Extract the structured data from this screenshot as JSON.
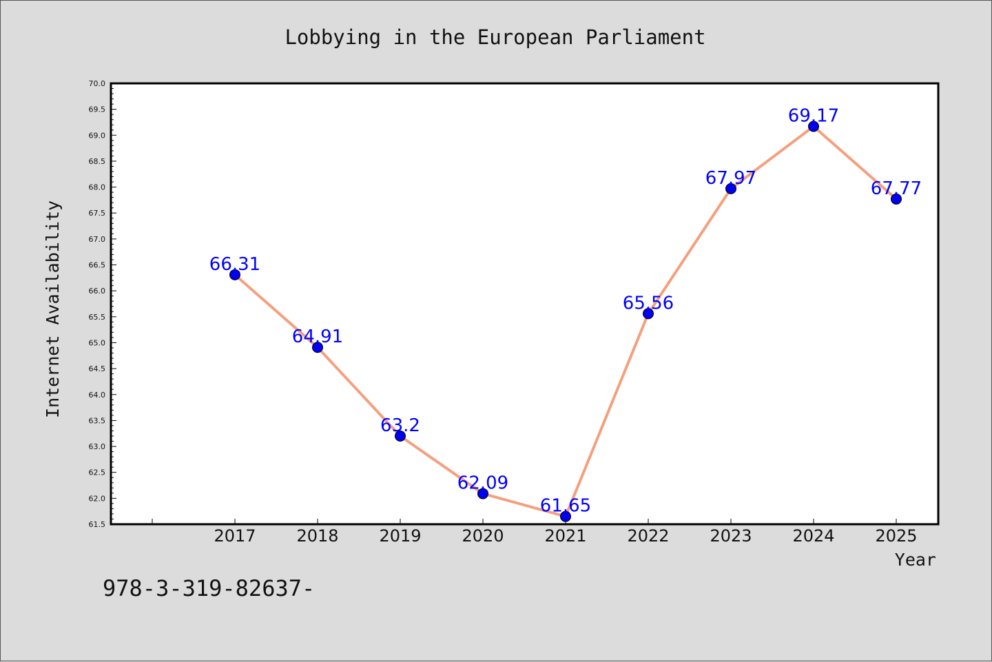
{
  "chart_data": {
    "type": "line",
    "title": "Lobbying in the European Parliament",
    "xlabel": "Year",
    "ylabel": "Internet Availability",
    "categories": [
      "2017",
      "2018",
      "2019",
      "2020",
      "2021",
      "2022",
      "2023",
      "2024",
      "2025"
    ],
    "series": [
      {
        "values": [
          66.31,
          64.91,
          63.2,
          62.09,
          61.65,
          65.56,
          67.97,
          69.17,
          67.77
        ],
        "data_labels": [
          "66.31",
          "64.91",
          "63.2",
          "62.09",
          "61.65",
          "65.56",
          "67.97",
          "69.17",
          "67.77"
        ],
        "line_color": "#f4a07e",
        "marker_color": "#0000ee",
        "label_color": "#0000ff"
      }
    ],
    "ylim": [
      61.5,
      70.0
    ],
    "yticks": [
      "61.5",
      "62.0",
      "62.5",
      "63.0",
      "63.5",
      "64.0",
      "64.5",
      "65.0",
      "65.5",
      "66.0",
      "66.5",
      "67.0",
      "67.5",
      "68.0",
      "68.5",
      "69.0",
      "69.5",
      "70.0"
    ],
    "grid": false,
    "legend": "none"
  },
  "footer": {
    "text": "978-3-319-82637-"
  },
  "colors": {
    "background": "#dcdcdc",
    "plot_background": "#ffffff"
  }
}
